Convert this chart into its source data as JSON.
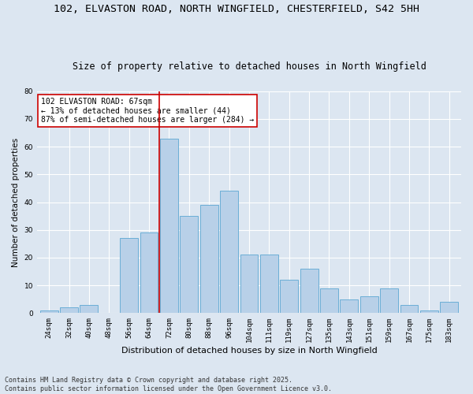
{
  "title1": "102, ELVASTON ROAD, NORTH WINGFIELD, CHESTERFIELD, S42 5HH",
  "title2": "Size of property relative to detached houses in North Wingfield",
  "xlabel": "Distribution of detached houses by size in North Wingfield",
  "ylabel": "Number of detached properties",
  "footer1": "Contains HM Land Registry data © Crown copyright and database right 2025.",
  "footer2": "Contains public sector information licensed under the Open Government Licence v3.0.",
  "annotation_title": "102 ELVASTON ROAD: 67sqm",
  "annotation_line1": "← 13% of detached houses are smaller (44)",
  "annotation_line2": "87% of semi-detached houses are larger (284) →",
  "bin_labels": [
    "24sqm",
    "32sqm",
    "40sqm",
    "48sqm",
    "56sqm",
    "64sqm",
    "72sqm",
    "80sqm",
    "88sqm",
    "96sqm",
    "104sqm",
    "111sqm",
    "119sqm",
    "127sqm",
    "135sqm",
    "143sqm",
    "151sqm",
    "159sqm",
    "167sqm",
    "175sqm",
    "183sqm"
  ],
  "bar_heights": [
    1,
    2,
    3,
    0,
    27,
    29,
    63,
    35,
    39,
    44,
    21,
    21,
    12,
    16,
    9,
    5,
    6,
    9,
    3,
    1,
    4
  ],
  "bar_color": "#b8d0e8",
  "bar_edge_color": "#6baed6",
  "vline_color": "#cc0000",
  "vline_bin_index": 6,
  "bg_color": "#dce6f1",
  "grid_color": "#ffffff",
  "ylim": [
    0,
    80
  ],
  "yticks": [
    0,
    10,
    20,
    30,
    40,
    50,
    60,
    70,
    80
  ],
  "title1_fontsize": 9.5,
  "title2_fontsize": 8.5,
  "xlabel_fontsize": 8,
  "ylabel_fontsize": 7.5,
  "tick_fontsize": 6.5,
  "annotation_fontsize": 7,
  "footer_fontsize": 6,
  "annotation_box_color": "#ffffff",
  "annotation_box_edge": "#cc0000"
}
